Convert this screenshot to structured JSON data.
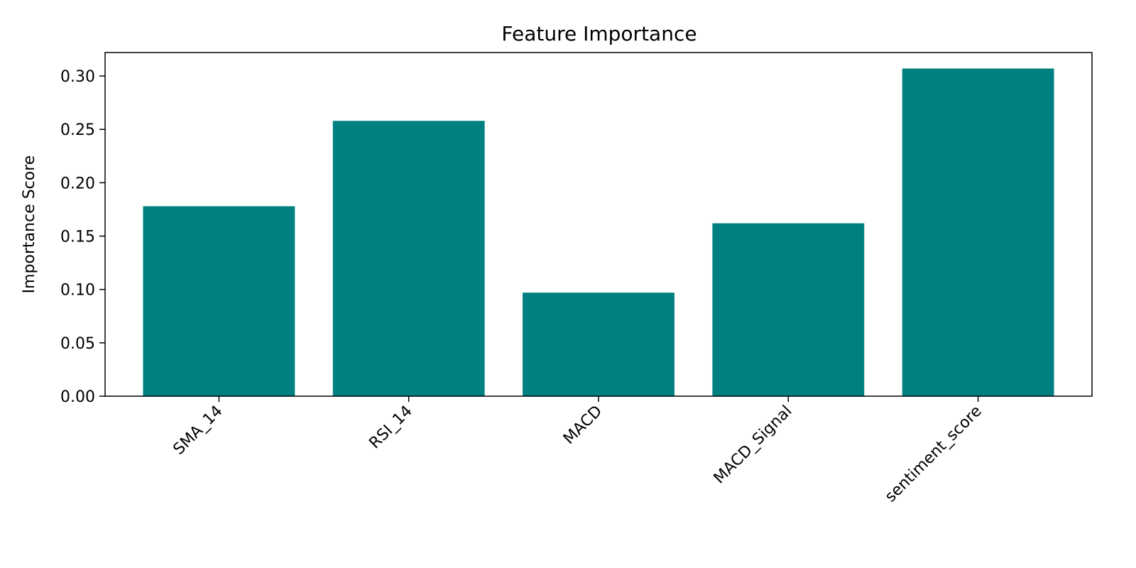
{
  "chart_data": {
    "type": "bar",
    "title": "Feature Importance",
    "xlabel": "",
    "ylabel": "Importance Score",
    "categories": [
      "SMA_14",
      "RSI_14",
      "MACD",
      "MACD_Signal",
      "sentiment_score"
    ],
    "values": [
      0.178,
      0.258,
      0.097,
      0.162,
      0.307
    ],
    "ylim": [
      0,
      0.322
    ],
    "yticks": [
      0.0,
      0.05,
      0.1,
      0.15,
      0.2,
      0.25,
      0.3
    ],
    "ytick_labels": [
      "0.00",
      "0.05",
      "0.10",
      "0.15",
      "0.20",
      "0.25",
      "0.30"
    ],
    "xtick_rotation_deg": 45,
    "grid": false,
    "legend": "none",
    "bar_color": "#008080"
  }
}
